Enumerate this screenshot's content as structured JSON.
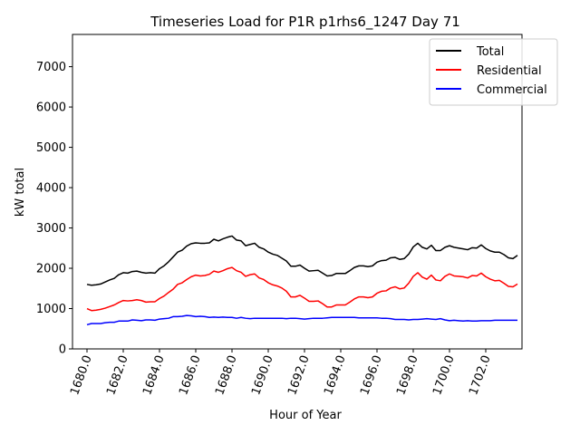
{
  "chart_data": {
    "type": "line",
    "title": "Timeseries Load for P1R p1rhs6_1247  Day 71",
    "xlabel": "Hour of Year",
    "ylabel": "kW total",
    "xlim": [
      1679.2,
      1704.0
    ],
    "ylim": [
      0,
      7800
    ],
    "x_ticks": [
      1680,
      1682,
      1684,
      1686,
      1688,
      1690,
      1692,
      1694,
      1696,
      1698,
      1700,
      1702
    ],
    "x_tick_labels": [
      "1680.0",
      "1682.0",
      "1684.0",
      "1686.0",
      "1688.0",
      "1690.0",
      "1692.0",
      "1694.0",
      "1696.0",
      "1698.0",
      "1700.0",
      "1702.0"
    ],
    "y_ticks": [
      0,
      1000,
      2000,
      3000,
      4000,
      5000,
      6000,
      7000
    ],
    "y_tick_labels": [
      "0",
      "1000",
      "2000",
      "3000",
      "4000",
      "5000",
      "6000",
      "7000"
    ],
    "legend_position": "top-right",
    "x": [
      1680.0,
      1680.25,
      1680.5,
      1680.75,
      1681.0,
      1681.25,
      1681.5,
      1681.75,
      1682.0,
      1682.25,
      1682.5,
      1682.75,
      1683.0,
      1683.25,
      1683.5,
      1683.75,
      1684.0,
      1684.25,
      1684.5,
      1684.75,
      1685.0,
      1685.25,
      1685.5,
      1685.75,
      1686.0,
      1686.25,
      1686.5,
      1686.75,
      1687.0,
      1687.25,
      1687.5,
      1687.75,
      1688.0,
      1688.25,
      1688.5,
      1688.75,
      1689.0,
      1689.25,
      1689.5,
      1689.75,
      1690.0,
      1690.25,
      1690.5,
      1690.75,
      1691.0,
      1691.25,
      1691.5,
      1691.75,
      1692.0,
      1692.25,
      1692.5,
      1692.75,
      1693.0,
      1693.25,
      1693.5,
      1693.75,
      1694.0,
      1694.25,
      1694.5,
      1694.75,
      1695.0,
      1695.25,
      1695.5,
      1695.75,
      1696.0,
      1696.25,
      1696.5,
      1696.75,
      1697.0,
      1697.25,
      1697.5,
      1697.75,
      1698.0,
      1698.25,
      1698.5,
      1698.75,
      1699.0,
      1699.25,
      1699.5,
      1699.75,
      1700.0,
      1700.25,
      1700.5,
      1700.75,
      1701.0,
      1701.25,
      1701.5,
      1701.75,
      1702.0,
      1702.25,
      1702.5,
      1702.75,
      1703.0,
      1703.25,
      1703.5,
      1703.75
    ],
    "series": [
      {
        "name": "Total",
        "color": "#000000",
        "values": [
          1600,
          1580,
          1590,
          1610,
          1660,
          1710,
          1750,
          1840,
          1890,
          1880,
          1920,
          1930,
          1900,
          1880,
          1890,
          1880,
          1990,
          2060,
          2160,
          2280,
          2400,
          2450,
          2550,
          2610,
          2630,
          2620,
          2620,
          2630,
          2720,
          2680,
          2730,
          2770,
          2800,
          2700,
          2680,
          2560,
          2590,
          2620,
          2520,
          2480,
          2400,
          2350,
          2320,
          2250,
          2180,
          2050,
          2050,
          2080,
          2000,
          1930,
          1940,
          1950,
          1880,
          1810,
          1820,
          1870,
          1870,
          1870,
          1940,
          2020,
          2060,
          2060,
          2040,
          2060,
          2150,
          2190,
          2200,
          2260,
          2270,
          2220,
          2240,
          2350,
          2530,
          2620,
          2520,
          2480,
          2570,
          2440,
          2440,
          2520,
          2560,
          2520,
          2500,
          2480,
          2460,
          2510,
          2500,
          2580,
          2490,
          2430,
          2400,
          2400,
          2340,
          2260,
          2240,
          2320
        ]
      },
      {
        "name": "Residential",
        "color": "#ff0000",
        "values": [
          1000,
          950,
          960,
          980,
          1010,
          1050,
          1090,
          1150,
          1200,
          1190,
          1200,
          1220,
          1200,
          1160,
          1170,
          1170,
          1250,
          1310,
          1400,
          1480,
          1600,
          1640,
          1720,
          1790,
          1830,
          1810,
          1820,
          1850,
          1930,
          1900,
          1940,
          1990,
          2020,
          1940,
          1900,
          1800,
          1840,
          1860,
          1760,
          1720,
          1640,
          1590,
          1560,
          1510,
          1430,
          1290,
          1290,
          1330,
          1260,
          1180,
          1180,
          1190,
          1120,
          1040,
          1040,
          1090,
          1090,
          1090,
          1160,
          1240,
          1290,
          1290,
          1270,
          1290,
          1380,
          1430,
          1440,
          1510,
          1540,
          1490,
          1510,
          1630,
          1800,
          1890,
          1780,
          1730,
          1830,
          1710,
          1690,
          1800,
          1860,
          1810,
          1800,
          1790,
          1760,
          1820,
          1810,
          1880,
          1790,
          1730,
          1690,
          1700,
          1630,
          1550,
          1540,
          1610
        ]
      },
      {
        "name": "Commercial",
        "color": "#0000ff",
        "values": [
          600,
          630,
          630,
          630,
          650,
          660,
          660,
          690,
          690,
          690,
          720,
          710,
          700,
          720,
          720,
          710,
          740,
          750,
          760,
          800,
          800,
          810,
          830,
          820,
          800,
          810,
          800,
          780,
          790,
          780,
          790,
          780,
          780,
          760,
          780,
          760,
          750,
          760,
          760,
          760,
          760,
          760,
          760,
          760,
          750,
          760,
          760,
          750,
          740,
          750,
          760,
          760,
          760,
          770,
          780,
          780,
          780,
          780,
          780,
          780,
          770,
          770,
          770,
          770,
          770,
          760,
          760,
          750,
          730,
          730,
          730,
          720,
          730,
          730,
          740,
          750,
          740,
          730,
          750,
          720,
          700,
          710,
          700,
          690,
          700,
          690,
          690,
          700,
          700,
          700,
          710,
          710,
          710,
          710,
          710,
          710
        ]
      }
    ]
  }
}
